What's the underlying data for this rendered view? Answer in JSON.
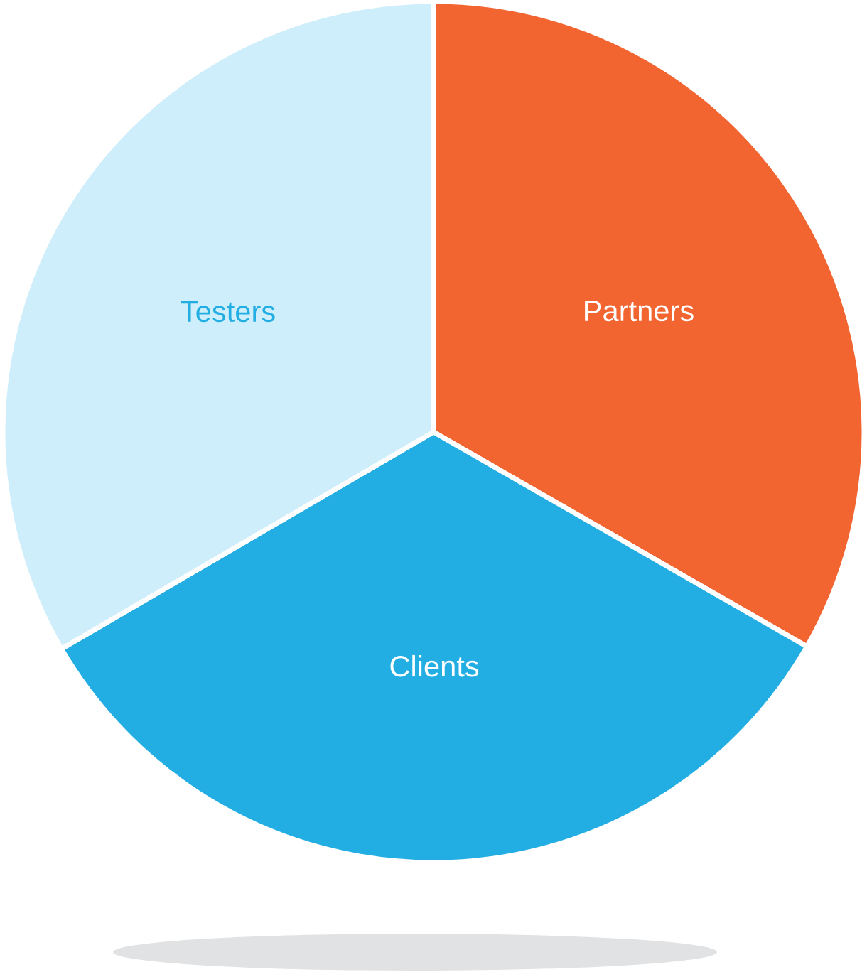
{
  "chart_data": {
    "type": "pie",
    "categories": [
      "Partners",
      "Clients",
      "Testers"
    ],
    "values": [
      33.3,
      33.3,
      33.4
    ],
    "colors": [
      "#f26430",
      "#23aee3",
      "#cdeefa"
    ]
  }
}
